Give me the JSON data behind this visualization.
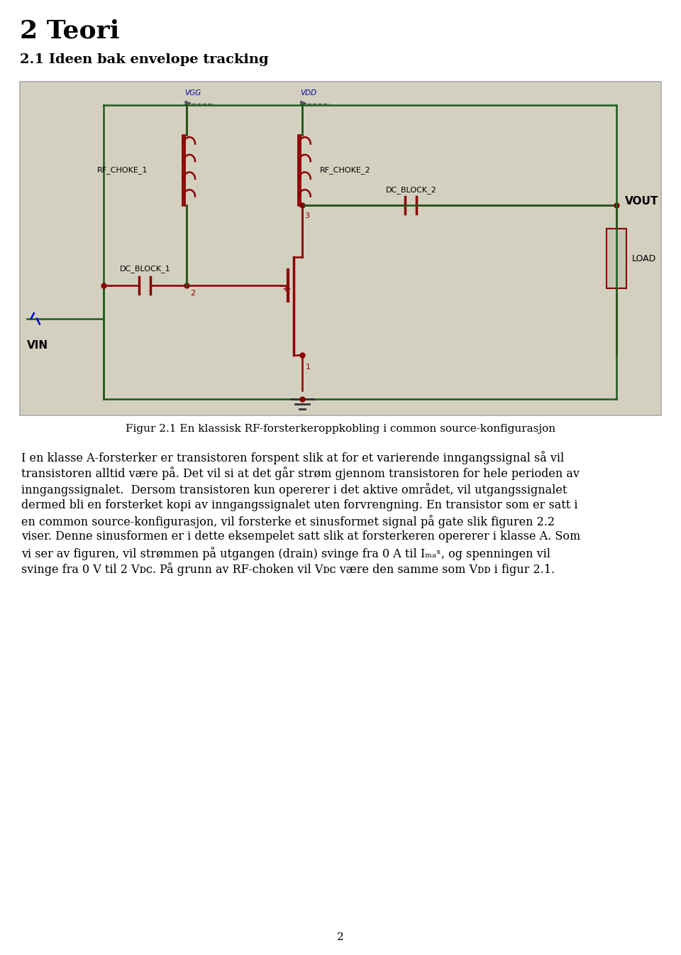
{
  "title1": "2 Teori",
  "title2": "2.1 Ideen bak envelope tracking",
  "figure_caption": "Figur 2.1 En klassisk RF-forsterkeroppkobling i common source-konfigurasjon",
  "bg_color": "#d4d0c0",
  "line_green": "#1a5c1a",
  "line_red": "#8b0000",
  "line_blue": "#0000cc",
  "text_blue": "#0000aa",
  "page_number": "2",
  "body_lines": [
    "I en klasse A-forsterker er transistoren forspent slik at for et varierende inngangssignal så vil",
    "transistoren alltid være på. Det vil si at det går strøm gjennom transistoren for hele perioden av",
    "inngangssignalet.  Dersom transistoren kun opererer i det aktive området, vil utgangssignalet",
    "dermed bli en forsterket kopi av inngangssignalet uten forvrengning. En transistor som er satt i",
    "en common source-konfigurasjon, vil forsterke et sinusformet signal på gate slik figuren 2.2",
    "viser. Denne sinusformen er i dette eksempelet satt slik at forsterkeren opererer i klasse A. Som",
    "vi ser av figuren, vil strømmen på utgangen (drain) svinge fra 0 A til Iₘₐˣ, og spenningen vil",
    "svinge fra 0 V til 2 Vᴅᴄ. På grunn av RF-choken vil Vᴅᴄ være den samme som Vᴅᴅ i figur 2.1."
  ]
}
